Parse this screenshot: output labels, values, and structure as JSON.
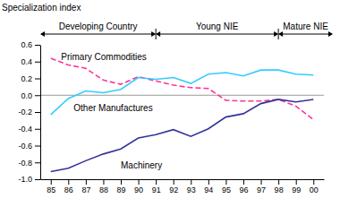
{
  "chart_data": {
    "type": "line",
    "y_label": "Specialization index",
    "categories": [
      "85",
      "86",
      "87",
      "88",
      "89",
      "90",
      "91",
      "92",
      "93",
      "94",
      "95",
      "96",
      "97",
      "98",
      "99",
      "00"
    ],
    "series": [
      {
        "name": "Primary Commodities",
        "color": "#ff3399",
        "line_style": "dashed",
        "values": [
          0.44,
          0.36,
          0.32,
          0.18,
          0.13,
          0.22,
          0.17,
          0.12,
          0.09,
          0.08,
          -0.06,
          -0.07,
          -0.07,
          -0.05,
          -0.13,
          -0.29
        ]
      },
      {
        "name": "Other Manufactures",
        "color": "#33ccff",
        "line_style": "solid",
        "values": [
          -0.23,
          -0.04,
          0.05,
          0.03,
          0.07,
          0.21,
          0.19,
          0.21,
          0.14,
          0.25,
          0.27,
          0.23,
          0.3,
          0.3,
          0.25,
          0.24
        ]
      },
      {
        "name": "Machinery",
        "color": "#333399",
        "line_style": "solid",
        "values": [
          -0.91,
          -0.87,
          -0.78,
          -0.7,
          -0.64,
          -0.51,
          -0.47,
          -0.41,
          -0.49,
          -0.4,
          -0.26,
          -0.22,
          -0.1,
          -0.05,
          -0.08,
          -0.05
        ]
      }
    ],
    "annotations": [
      {
        "text": "Developing Country",
        "start": "85",
        "end": "91"
      },
      {
        "text": "Young NIE",
        "start": "91",
        "end": "98"
      },
      {
        "text": "Mature NIE",
        "start": "98",
        "end": "00"
      }
    ],
    "ylim": [
      -1,
      0.6
    ],
    "yticks": [
      0.6,
      0.4,
      0.2,
      {
        "value": 0,
        "label": "0.0"
      },
      -0.2,
      -0.4,
      -0.6,
      -0.8,
      {
        "value": -1,
        "label": "-1.0"
      }
    ],
    "grid": false
  }
}
